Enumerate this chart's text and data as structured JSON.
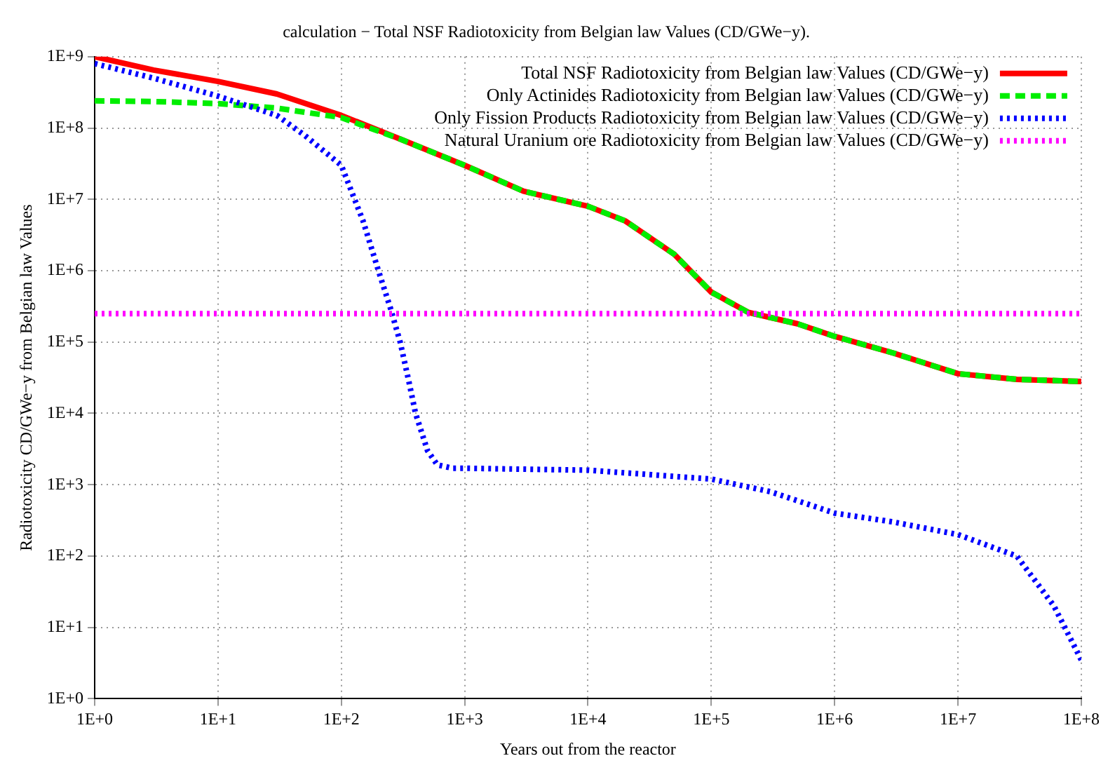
{
  "chart_data": {
    "type": "line",
    "title": "calculation − Total NSF Radiotoxicity from Belgian law Values (CD/GWe−y).",
    "xlabel": "Years out from the reactor",
    "ylabel": "Radiotoxicity CD/GWe−y from Belgian law Values",
    "log": "xy",
    "grid": true,
    "legend": "top right",
    "marker": "none",
    "xlim": [
      1,
      100000000
    ],
    "ylim": [
      1,
      1000000000
    ],
    "xticks": [
      {
        "value": 1,
        "label": "1E+0"
      },
      {
        "value": 10,
        "label": "1E+1"
      },
      {
        "value": 100,
        "label": "1E+2"
      },
      {
        "value": 1000,
        "label": "1E+3"
      },
      {
        "value": 10000,
        "label": "1E+4"
      },
      {
        "value": 100000,
        "label": "1E+5"
      },
      {
        "value": 1000000,
        "label": "1E+6"
      },
      {
        "value": 10000000,
        "label": "1E+7"
      },
      {
        "value": 100000000,
        "label": "1E+8"
      }
    ],
    "yticks": [
      {
        "value": 1,
        "label": "1E+0"
      },
      {
        "value": 10,
        "label": "1E+1"
      },
      {
        "value": 100,
        "label": "1E+2"
      },
      {
        "value": 1000,
        "label": "1E+3"
      },
      {
        "value": 10000,
        "label": "1E+4"
      },
      {
        "value": 100000,
        "label": "1E+5"
      },
      {
        "value": 1000000,
        "label": "1E+6"
      },
      {
        "value": 10000000,
        "label": "1E+7"
      },
      {
        "value": 100000000,
        "label": "1E+8"
      },
      {
        "value": 1000000000,
        "label": "1E+9"
      }
    ],
    "series": [
      {
        "name": "Total NSF Radiotoxicity from Belgian law Values (CD/GWe−y)",
        "color": "#ff0000",
        "line_style": "solid",
        "x": [
          1,
          3,
          10,
          30,
          100,
          300,
          1000,
          3000,
          10000,
          20000,
          50000,
          100000,
          200000,
          500000,
          1000000,
          3000000,
          10000000,
          30000000,
          100000000
        ],
        "values": [
          1000000000,
          650000000,
          450000000,
          300000000,
          150000000,
          70000000,
          30000000,
          13000000,
          8000000,
          5000000,
          1700000,
          500000,
          260000,
          180000,
          120000,
          70000,
          36000,
          30000,
          28000
        ]
      },
      {
        "name": "Only Actinides Radiotoxicity from Belgian law Values (CD/GWe−y)",
        "color": "#00ee00",
        "line_style": "dashed",
        "x": [
          1,
          3,
          10,
          30,
          100,
          300,
          1000,
          3000,
          10000,
          20000,
          50000,
          100000,
          200000,
          500000,
          1000000,
          3000000,
          10000000,
          30000000,
          100000000
        ],
        "values": [
          240000000,
          235000000,
          220000000,
          190000000,
          140000000,
          70000000,
          30000000,
          13000000,
          8000000,
          5000000,
          1700000,
          500000,
          260000,
          180000,
          120000,
          70000,
          36000,
          30000,
          28000
        ]
      },
      {
        "name": "Only Fission Products Radiotoxicity from Belgian law Values (CD/GWe−y)",
        "color": "#0000ff",
        "line_style": "dotted",
        "x": [
          1,
          3,
          10,
          30,
          50,
          100,
          150,
          200,
          250,
          300,
          350,
          400,
          500,
          600,
          800,
          1000,
          10000,
          100000,
          300000,
          1000000,
          3000000,
          10000000,
          30000000,
          60000000,
          100000000
        ],
        "values": [
          800000000,
          500000000,
          280000000,
          150000000,
          80000000,
          30000000,
          5000000,
          1000000,
          300000,
          100000,
          30000,
          10000,
          3000,
          1900,
          1700,
          1700,
          1600,
          1200,
          800,
          400,
          300,
          200,
          100,
          20,
          3.5
        ]
      },
      {
        "name": "Natural Uranium ore Radiotoxicity from Belgian law Values (CD/GWe−y)",
        "color": "#ff00ff",
        "line_style": "dotted",
        "x": [
          1,
          100000000
        ],
        "values": [
          250000,
          250000
        ]
      }
    ]
  }
}
